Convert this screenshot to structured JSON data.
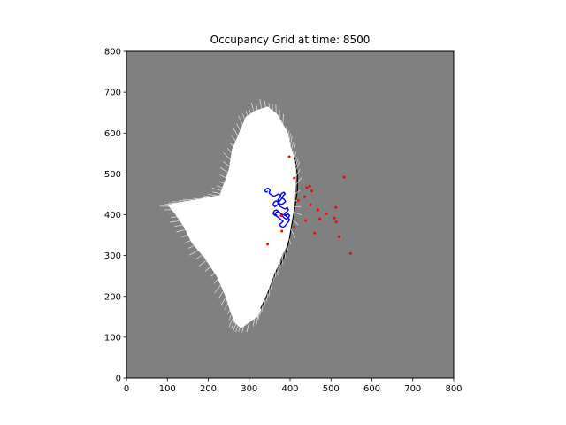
{
  "chart_data": {
    "type": "heatmap",
    "title": "Occupancy Grid at time: 8500",
    "xlabel": "",
    "ylabel": "",
    "xlim": [
      0,
      800
    ],
    "ylim": [
      0,
      800
    ],
    "xticks": [
      0,
      100,
      200,
      300,
      400,
      500,
      600,
      700,
      800
    ],
    "yticks": [
      0,
      100,
      200,
      300,
      400,
      500,
      600,
      700,
      800
    ],
    "grid": false,
    "colors": {
      "unknown": "#808080",
      "free": "#ffffff",
      "occupied": "#000000",
      "trajectory": "#0000ff",
      "landmarks": "#ff0000"
    },
    "free_region": [
      [
        100,
        425
      ],
      [
        140,
        432
      ],
      [
        185,
        440
      ],
      [
        228,
        448
      ],
      [
        236,
        470
      ],
      [
        250,
        510
      ],
      [
        258,
        560
      ],
      [
        275,
        600
      ],
      [
        292,
        640
      ],
      [
        315,
        655
      ],
      [
        345,
        665
      ],
      [
        370,
        645
      ],
      [
        395,
        600
      ],
      [
        402,
        565
      ],
      [
        412,
        535
      ],
      [
        415,
        505
      ],
      [
        412,
        440
      ],
      [
        408,
        400
      ],
      [
        395,
        330
      ],
      [
        378,
        295
      ],
      [
        362,
        255
      ],
      [
        348,
        215
      ],
      [
        330,
        170
      ],
      [
        320,
        150
      ],
      [
        280,
        122
      ],
      [
        265,
        135
      ],
      [
        255,
        160
      ],
      [
        240,
        205
      ],
      [
        220,
        250
      ],
      [
        190,
        295
      ],
      [
        160,
        330
      ],
      [
        140,
        370
      ],
      [
        120,
        400
      ]
    ],
    "occupied_boundary": [
      [
        412,
        540
      ],
      [
        418,
        500
      ],
      [
        418,
        460
      ],
      [
        412,
        420
      ],
      [
        405,
        380
      ],
      [
        398,
        340
      ],
      [
        390,
        310
      ],
      [
        380,
        285
      ],
      [
        365,
        260
      ],
      [
        352,
        225
      ],
      [
        340,
        195
      ],
      [
        328,
        170
      ]
    ],
    "landmarks": [
      [
        398,
        542
      ],
      [
        410,
        490
      ],
      [
        448,
        470
      ],
      [
        441,
        466
      ],
      [
        453,
        458
      ],
      [
        436,
        444
      ],
      [
        420,
        435
      ],
      [
        532,
        492
      ],
      [
        450,
        424
      ],
      [
        468,
        412
      ],
      [
        489,
        403
      ],
      [
        512,
        418
      ],
      [
        378,
        398
      ],
      [
        438,
        386
      ],
      [
        473,
        390
      ],
      [
        508,
        392
      ],
      [
        410,
        370
      ],
      [
        513,
        382
      ],
      [
        380,
        360
      ],
      [
        460,
        355
      ],
      [
        520,
        346
      ],
      [
        345,
        328
      ],
      [
        548,
        305
      ]
    ],
    "trajectory": [
      [
        345,
        458
      ],
      [
        342,
        455
      ],
      [
        338,
        458
      ],
      [
        340,
        462
      ],
      [
        346,
        465
      ],
      [
        351,
        460
      ],
      [
        349,
        453
      ],
      [
        355,
        448
      ],
      [
        361,
        445
      ],
      [
        366,
        448
      ],
      [
        372,
        451
      ],
      [
        377,
        447
      ],
      [
        374,
        441
      ],
      [
        370,
        436
      ],
      [
        373,
        430
      ],
      [
        369,
        424
      ],
      [
        363,
        420
      ],
      [
        358,
        424
      ],
      [
        360,
        430
      ],
      [
        366,
        434
      ],
      [
        372,
        429
      ],
      [
        378,
        425
      ],
      [
        384,
        428
      ],
      [
        389,
        432
      ],
      [
        386,
        437
      ],
      [
        381,
        441
      ],
      [
        383,
        446
      ],
      [
        388,
        451
      ],
      [
        385,
        455
      ],
      [
        379,
        452
      ],
      [
        376,
        446
      ],
      [
        380,
        440
      ],
      [
        375,
        434
      ],
      [
        370,
        428
      ],
      [
        375,
        421
      ],
      [
        382,
        417
      ],
      [
        388,
        414
      ],
      [
        393,
        418
      ],
      [
        396,
        412
      ],
      [
        392,
        407
      ],
      [
        386,
        404
      ],
      [
        390,
        399
      ],
      [
        395,
        402
      ],
      [
        399,
        398
      ],
      [
        396,
        393
      ],
      [
        391,
        389
      ],
      [
        386,
        392
      ],
      [
        381,
        397
      ],
      [
        377,
        403
      ],
      [
        372,
        408
      ],
      [
        367,
        412
      ],
      [
        362,
        410
      ],
      [
        358,
        404
      ],
      [
        362,
        399
      ],
      [
        368,
        396
      ],
      [
        373,
        392
      ],
      [
        378,
        388
      ],
      [
        383,
        384
      ],
      [
        379,
        380
      ],
      [
        374,
        376
      ],
      [
        377,
        372
      ],
      [
        383,
        369
      ],
      [
        388,
        373
      ],
      [
        392,
        378
      ],
      [
        396,
        383
      ],
      [
        399,
        388
      ],
      [
        395,
        392
      ],
      [
        390,
        397
      ],
      [
        384,
        400
      ],
      [
        378,
        402
      ],
      [
        373,
        406
      ],
      [
        367,
        407
      ],
      [
        363,
        402
      ],
      [
        368,
        398
      ]
    ]
  }
}
